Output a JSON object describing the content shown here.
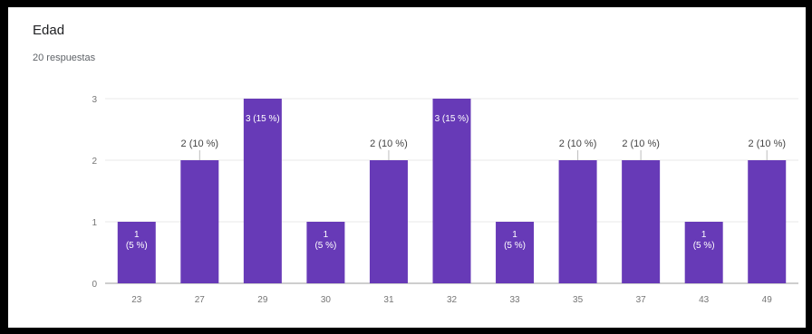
{
  "card": {
    "title": "Edad",
    "subtitle": "20 respuestas"
  },
  "chart_data": {
    "type": "bar",
    "categories": [
      "23",
      "27",
      "29",
      "30",
      "31",
      "32",
      "33",
      "35",
      "37",
      "43",
      "49"
    ],
    "values": [
      1,
      2,
      3,
      1,
      2,
      3,
      1,
      2,
      2,
      1,
      2
    ],
    "data_labels": [
      "1 (5 %)",
      "2 (10 %)",
      "3 (15 %)",
      "1 (5 %)",
      "2 (10 %)",
      "3 (15 %)",
      "1 (5 %)",
      "2 (10 %)",
      "2 (10 %)",
      "1 (5 %)",
      "2 (10 %)"
    ],
    "yticks": [
      0,
      1,
      2,
      3
    ],
    "ylim": [
      0,
      3
    ],
    "grid": true,
    "bar_color": "#673ab7",
    "title": "",
    "xlabel": "",
    "ylabel": ""
  }
}
